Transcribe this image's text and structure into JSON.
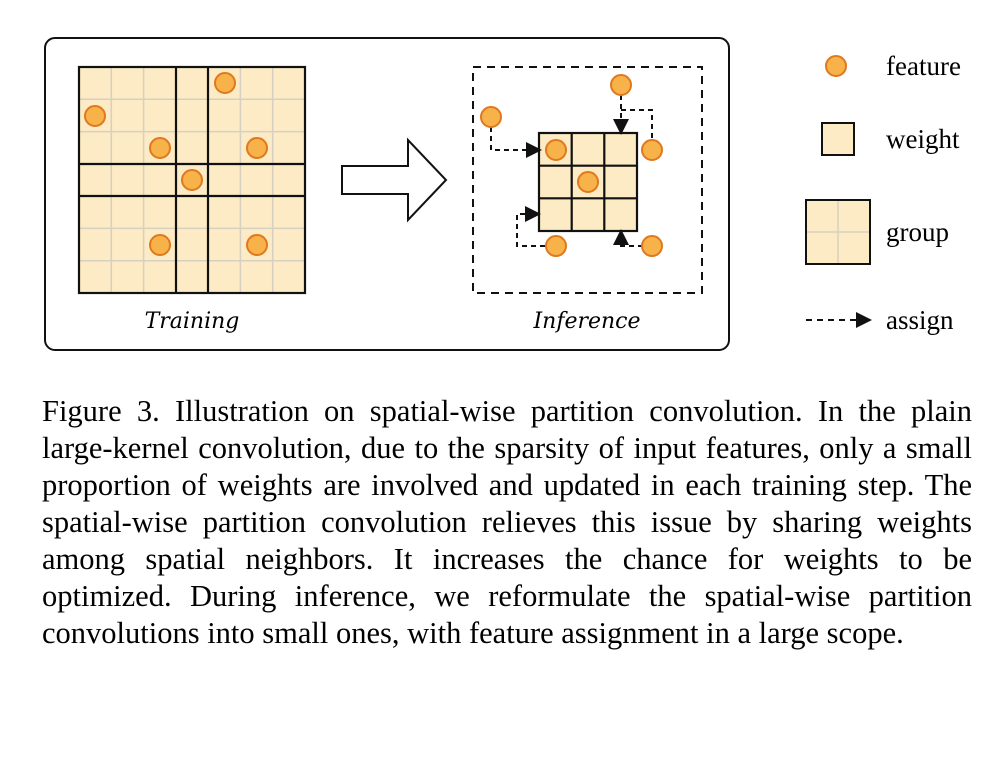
{
  "figure": {
    "panels": {
      "training_label": "Training",
      "inference_label": "Inference"
    },
    "legend": {
      "feature": "feature",
      "weight": "weight",
      "group": "group",
      "assign": "assign"
    },
    "colors": {
      "cell_fill": "#fcebc4",
      "cell_grid": "#d6d0c2",
      "feature_fill": "#f7b24a",
      "feature_stroke": "#e0781e",
      "line": "#111111"
    }
  },
  "caption": {
    "text": "Figure 3. Illustration on spatial-wise partition convolution. In the plain large-kernel convolution, due to the sparsity of input features, only a small proportion of weights are involved and updated in each training step. The spatial-wise partition convolution relieves this issue by sharing weights among spatial neighbors. It increases the chance for weights to be optimized. During inference, we reformulate the spatial-wise partition convolutions into small ones, with feature assignment in a large scope."
  }
}
